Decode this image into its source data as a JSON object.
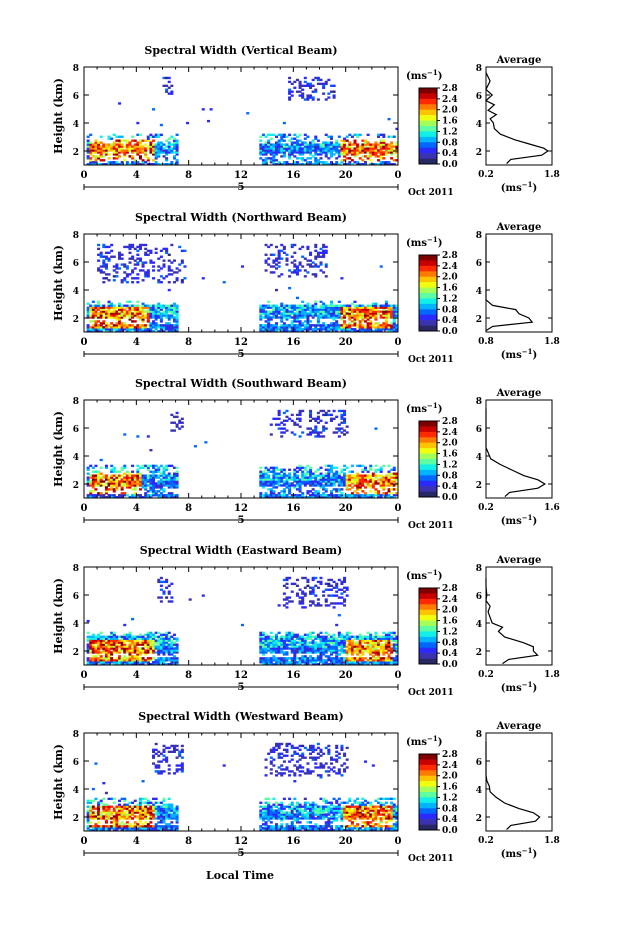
{
  "chart_data": {
    "type": "heatmap",
    "xlabel": "Local Time",
    "x_ticks": [
      "0",
      "4",
      "8",
      "12",
      "16",
      "20",
      "0"
    ],
    "date_marker": "5",
    "date_label": "Oct 2011",
    "xlim": [
      0,
      24
    ],
    "ylabel": "Height (km)",
    "y_ticks": [
      "2",
      "4",
      "6",
      "8"
    ],
    "ylim": [
      1,
      8
    ],
    "colorbar": {
      "unit_base": "(ms",
      "unit_exp": "−1",
      "unit_close": ")",
      "tick_labels": [
        "2.8",
        "2.4",
        "2.0",
        "1.6",
        "1.2",
        "0.8",
        "0.4",
        "0.0"
      ],
      "range": [
        0,
        2.8
      ],
      "colors": [
        "#7f0000",
        "#c80000",
        "#ff2a00",
        "#ff7a00",
        "#ffc400",
        "#f0ff10",
        "#a4ff5a",
        "#5cffa2",
        "#10f0e8",
        "#00b4ff",
        "#0068ff",
        "#2a2aff",
        "#3a32b0",
        "#282864"
      ]
    },
    "profile": {
      "title": "Average",
      "xlabel_base": "(ms",
      "xlabel_exp": "−1",
      "xlabel_close": ")",
      "y_ticks": [
        "2",
        "4",
        "6",
        "8"
      ]
    },
    "panels": [
      {
        "title": "Spectral Width (Vertical Beam)",
        "profile_x_ticks": [
          "0.2",
          "1.8"
        ],
        "low": {
          "t1": [
            0.3,
            7.3
          ],
          "t2": [
            13.4,
            24
          ],
          "hmax": 3.2,
          "hot_a": [
            0.4,
            5.5
          ],
          "hot_b": [
            19.5,
            24
          ]
        },
        "bands": [
          [
            0.2,
            0.8
          ],
          [
            1.6,
            2.0
          ]
        ],
        "upper": [
          [
            6.0,
            6.7,
            7.0,
            8.2
          ],
          [
            15.5,
            19.0,
            6.6,
            8.2
          ]
        ],
        "profile": [
          [
            1.1,
            0.7
          ],
          [
            1.4,
            0.8
          ],
          [
            1.7,
            1.55
          ],
          [
            2.0,
            1.7
          ],
          [
            2.2,
            1.6
          ],
          [
            2.5,
            1.25
          ],
          [
            2.8,
            0.9
          ],
          [
            3.2,
            0.55
          ],
          [
            3.6,
            0.4
          ],
          [
            4.0,
            0.38
          ],
          [
            4.3,
            0.3
          ],
          [
            4.6,
            0.45
          ],
          [
            4.9,
            0.25
          ],
          [
            5.3,
            0.4
          ],
          [
            5.6,
            0.2
          ],
          [
            6.0,
            0.35
          ],
          [
            6.4,
            0.2
          ],
          [
            7.0,
            0.3
          ],
          [
            7.6,
            0.2
          ]
        ]
      },
      {
        "title": "Spectral Width (Northward Beam)",
        "profile_x_ticks": [
          "0.8",
          "1.8"
        ],
        "low": {
          "t1": [
            0.3,
            7.3
          ],
          "t2": [
            13.4,
            24
          ],
          "hmax": 3.3,
          "hot_a": [
            0.4,
            5.0
          ],
          "hot_b": [
            19.5,
            23.5
          ]
        },
        "bands": [
          [
            0.5,
            1.0
          ],
          [
            2.0,
            2.4
          ]
        ],
        "upper": [
          [
            1.0,
            7.8,
            5.5,
            8.2
          ],
          [
            13.6,
            18.5,
            5.8,
            8.2
          ]
        ],
        "profile": [
          [
            1.1,
            0.8
          ],
          [
            1.4,
            0.9
          ],
          [
            1.7,
            1.5
          ],
          [
            2.0,
            1.45
          ],
          [
            2.3,
            1.3
          ],
          [
            2.6,
            1.25
          ],
          [
            2.9,
            0.9
          ],
          [
            3.3,
            0.75
          ],
          [
            3.6,
            0.5
          ],
          [
            4.0,
            0.4
          ],
          [
            4.5,
            0.3
          ],
          [
            5.0,
            0.35
          ],
          [
            5.5,
            0.22
          ],
          [
            6.0,
            0.2
          ],
          [
            6.6,
            0.22
          ],
          [
            7.2,
            0.18
          ],
          [
            7.8,
            0.2
          ]
        ]
      },
      {
        "title": "Spectral Width (Southward Beam)",
        "profile_x_ticks": [
          "0.2",
          "1.6"
        ],
        "low": {
          "t1": [
            0.3,
            7.3
          ],
          "t2": [
            13.4,
            24
          ],
          "hmax": 3.4,
          "hot_a": [
            0.4,
            4.5
          ],
          "hot_b": [
            20.0,
            24
          ]
        },
        "bands": [
          [
            0.3,
            0.8
          ],
          [
            1.7,
            2.1
          ]
        ],
        "upper": [
          [
            6.5,
            7.5,
            6.7,
            8.2
          ],
          [
            14.0,
            20.0,
            6.3,
            8.2
          ]
        ],
        "profile": [
          [
            1.1,
            0.6
          ],
          [
            1.4,
            0.7
          ],
          [
            1.7,
            1.3
          ],
          [
            2.0,
            1.45
          ],
          [
            2.3,
            1.3
          ],
          [
            2.6,
            1.0
          ],
          [
            3.0,
            0.75
          ],
          [
            3.4,
            0.5
          ],
          [
            3.8,
            0.3
          ],
          [
            4.2,
            0.25
          ],
          [
            4.6,
            0.2
          ],
          [
            5.0,
            0.18
          ],
          [
            5.6,
            0.16
          ],
          [
            6.2,
            0.17
          ],
          [
            6.8,
            0.16
          ],
          [
            7.4,
            0.17
          ]
        ]
      },
      {
        "title": "Spectral Width (Eastward Beam)",
        "profile_x_ticks": [
          "0.2",
          "1.8"
        ],
        "low": {
          "t1": [
            0.3,
            7.3
          ],
          "t2": [
            13.4,
            24
          ],
          "hmax": 3.4,
          "hot_a": [
            0.4,
            5.5
          ],
          "hot_b": [
            20.0,
            23.5
          ]
        },
        "bands": [
          [
            0.6,
            0.9
          ],
          [
            2.4,
            2.7
          ]
        ],
        "upper": [
          [
            5.5,
            6.7,
            6.3,
            8.2
          ],
          [
            15.0,
            20.0,
            6.0,
            8.2
          ]
        ],
        "profile": [
          [
            1.1,
            0.6
          ],
          [
            1.4,
            0.75
          ],
          [
            1.7,
            1.45
          ],
          [
            2.0,
            1.35
          ],
          [
            2.3,
            1.35
          ],
          [
            2.6,
            1.1
          ],
          [
            3.0,
            0.65
          ],
          [
            3.4,
            0.5
          ],
          [
            3.7,
            0.6
          ],
          [
            4.0,
            0.35
          ],
          [
            4.4,
            0.3
          ],
          [
            4.8,
            0.25
          ],
          [
            5.2,
            0.3
          ],
          [
            5.6,
            0.2
          ],
          [
            6.0,
            0.22
          ],
          [
            6.6,
            0.2
          ],
          [
            7.2,
            0.18
          ]
        ]
      },
      {
        "title": "Spectral Width (Westward Beam)",
        "profile_x_ticks": [
          "0.2",
          "1.8"
        ],
        "low": {
          "t1": [
            0.3,
            7.3
          ],
          "t2": [
            13.4,
            24
          ],
          "hmax": 3.4,
          "hot_a": [
            0.4,
            5.5
          ],
          "hot_b": [
            19.8,
            23.5
          ]
        },
        "bands": [
          [
            0.4,
            0.9
          ],
          [
            1.8,
            2.2
          ]
        ],
        "upper": [
          [
            5.2,
            7.5,
            6.0,
            8.2
          ],
          [
            13.6,
            20.0,
            5.8,
            8.2
          ]
        ],
        "profile": [
          [
            1.1,
            0.7
          ],
          [
            1.4,
            0.8
          ],
          [
            1.7,
            1.4
          ],
          [
            2.0,
            1.5
          ],
          [
            2.3,
            1.35
          ],
          [
            2.6,
            1.0
          ],
          [
            3.0,
            0.65
          ],
          [
            3.4,
            0.45
          ],
          [
            3.8,
            0.3
          ],
          [
            4.2,
            0.28
          ],
          [
            4.6,
            0.22
          ],
          [
            5.0,
            0.2
          ],
          [
            5.6,
            0.18
          ],
          [
            6.2,
            0.2
          ],
          [
            6.8,
            0.17
          ],
          [
            7.4,
            0.18
          ]
        ]
      }
    ]
  }
}
